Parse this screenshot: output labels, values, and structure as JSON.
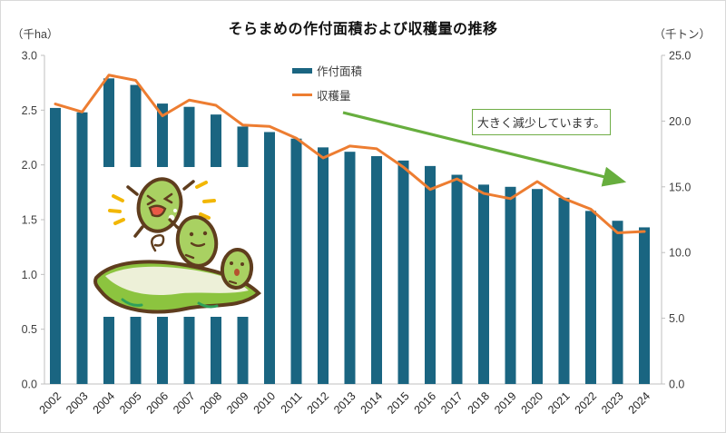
{
  "title": "そらまめの作付面積および収穫量の推移",
  "left_axis": {
    "unit_label": "（千ha）",
    "tick_labels": [
      "3.0",
      "2.5",
      "2.0",
      "1.5",
      "1.0",
      "0.5",
      "0.0"
    ],
    "min": 0,
    "max": 3.0
  },
  "right_axis": {
    "unit_label": "（千トン）",
    "tick_labels": [
      "25.0",
      "20.0",
      "15.0",
      "10.0",
      "5.0",
      "0.0"
    ],
    "min": 0,
    "max": 25.0
  },
  "legend": {
    "items": [
      {
        "label": "作付面積",
        "swatch": "bar-swatch"
      },
      {
        "label": "収穫量",
        "swatch": "line-swatch"
      }
    ]
  },
  "annotation": {
    "text": "大きく減少しています。"
  },
  "illustration": {
    "name": "fava-bean-characters-illustration"
  },
  "colors": {
    "bar": "#1A6581",
    "line": "#ED7D31",
    "arrow_green": "#67AE3E",
    "annotation_border": "#70AD47",
    "axis_line": "#BFBFBF",
    "tick_text": "#3f3f3f",
    "year_text": "#262626"
  },
  "chart_data": {
    "type": "bar",
    "subtype": "bar+line combo, dual axis",
    "title": "そらまめの作付面積および収穫量の推移",
    "categories": [
      "2002",
      "2003",
      "2004",
      "2005",
      "2006",
      "2007",
      "2008",
      "2009",
      "2010",
      "2011",
      "2012",
      "2013",
      "2014",
      "2015",
      "2016",
      "2017",
      "2018",
      "2019",
      "2020",
      "2021",
      "2022",
      "2023",
      "2024"
    ],
    "series": [
      {
        "name": "作付面積",
        "type": "bar",
        "axis": "left",
        "unit": "千ha",
        "values": [
          2.52,
          2.48,
          2.79,
          2.73,
          2.56,
          2.53,
          2.46,
          2.35,
          2.3,
          2.24,
          2.16,
          2.12,
          2.08,
          2.04,
          1.99,
          1.91,
          1.82,
          1.8,
          1.78,
          1.7,
          1.58,
          1.49,
          1.43
        ]
      },
      {
        "name": "収穫量",
        "type": "line",
        "axis": "right",
        "unit": "千トン",
        "values": [
          21.3,
          20.7,
          23.5,
          23.1,
          20.4,
          21.6,
          21.2,
          19.7,
          19.6,
          18.7,
          17.2,
          18.1,
          17.9,
          16.5,
          14.8,
          15.6,
          14.5,
          14.1,
          15.4,
          14.1,
          13.3,
          11.5,
          11.6
        ]
      }
    ],
    "left_ylim": [
      0,
      3.0
    ],
    "right_ylim": [
      0,
      25.0
    ],
    "left_tick_step": 0.5,
    "right_tick_step": 5.0,
    "grid": false,
    "legend_position": "top-center",
    "annotation_arrow": "green arrow sloping down from 2013 area to 2024 area with label 大きく減少しています。"
  }
}
